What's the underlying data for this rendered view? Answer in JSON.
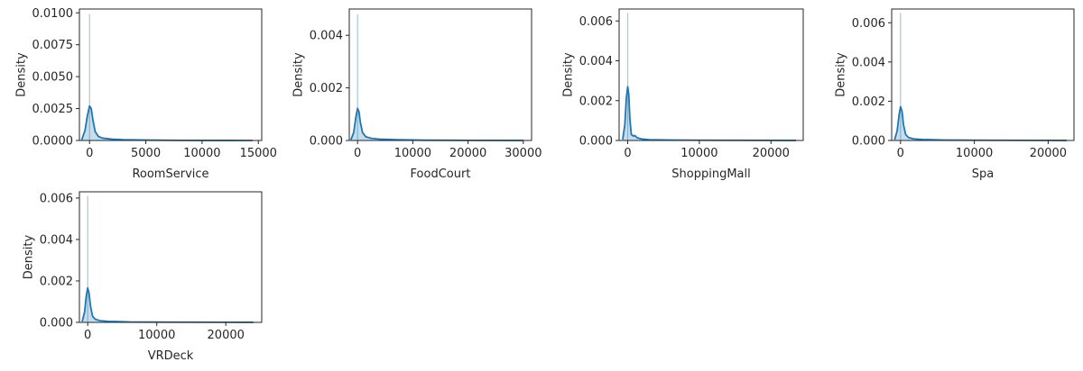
{
  "colors": {
    "kde_line": "#1f77b4",
    "hist_bar": "#a6cad6",
    "axis": "#262626"
  },
  "chart_data": [
    {
      "type": "area",
      "xlabel": "RoomService",
      "ylabel": "Density",
      "xlim": [
        -900,
        15300
      ],
      "ylim": [
        0,
        0.0103
      ],
      "xticks": [
        0,
        5000,
        10000,
        15000
      ],
      "xtick_labels": [
        "0",
        "5000",
        "10000",
        "15000"
      ],
      "yticks": [
        0,
        0.0025,
        0.005,
        0.0075,
        0.01
      ],
      "ytick_labels": [
        "0.0000",
        "0.0025",
        "0.0050",
        "0.0075",
        "0.0100"
      ],
      "hist": {
        "x": 0,
        "height": 0.0099
      },
      "kde": {
        "x": [
          -700,
          -400,
          -200,
          0,
          150,
          300,
          500,
          800,
          1200,
          2000,
          3000,
          5000,
          8000,
          11000,
          14500
        ],
        "y": [
          5e-05,
          0.0008,
          0.0019,
          0.0027,
          0.0025,
          0.0016,
          0.0007,
          0.0003,
          0.00018,
          0.0001,
          6e-05,
          3e-05,
          1e-05,
          5e-06,
          2e-06
        ]
      }
    },
    {
      "type": "area",
      "xlabel": "FoodCourt",
      "ylabel": "Density",
      "xlim": [
        -1500,
        31500
      ],
      "ylim": [
        0,
        0.005
      ],
      "xticks": [
        0,
        10000,
        20000,
        30000
      ],
      "xtick_labels": [
        "0",
        "10000",
        "20000",
        "30000"
      ],
      "yticks": [
        0,
        0.002,
        0.004
      ],
      "ytick_labels": [
        "0.000",
        "0.002",
        "0.004"
      ],
      "hist": {
        "x": 0,
        "height": 0.0048
      },
      "kde": {
        "x": [
          -1200,
          -700,
          -300,
          0,
          250,
          500,
          900,
          1500,
          2500,
          4000,
          7000,
          12000,
          20000,
          30000
        ],
        "y": [
          3e-05,
          0.0003,
          0.0009,
          0.00122,
          0.0011,
          0.0007,
          0.0003,
          0.00014,
          8e-05,
          5e-05,
          3e-05,
          1e-05,
          5e-06,
          2e-06
        ]
      }
    },
    {
      "type": "area",
      "xlabel": "ShoppingMall",
      "ylabel": "Density",
      "xlim": [
        -1200,
        24500
      ],
      "ylim": [
        0,
        0.0066
      ],
      "xticks": [
        0,
        10000,
        20000
      ],
      "xtick_labels": [
        "0",
        "10000",
        "20000"
      ],
      "yticks": [
        0,
        0.002,
        0.004,
        0.006
      ],
      "ytick_labels": [
        "0.000",
        "0.002",
        "0.004",
        "0.006"
      ],
      "hist": {
        "x": 0,
        "height": 0.0064
      },
      "kde": {
        "x": [
          -700,
          -400,
          -200,
          0,
          150,
          300,
          500,
          800,
          1000,
          1300,
          2000,
          3000,
          6000,
          12000,
          23500
        ],
        "y": [
          5e-05,
          0.0008,
          0.0021,
          0.0027,
          0.0023,
          0.0011,
          0.0003,
          0.00022,
          0.00025,
          0.00014,
          7e-05,
          4e-05,
          2e-05,
          1e-05,
          2e-06
        ]
      }
    },
    {
      "type": "area",
      "xlabel": "Spa",
      "ylabel": "Density",
      "xlim": [
        -1200,
        23500
      ],
      "ylim": [
        0,
        0.0067
      ],
      "xticks": [
        0,
        10000,
        20000
      ],
      "xtick_labels": [
        "0",
        "10000",
        "20000"
      ],
      "yticks": [
        0,
        0.002,
        0.004,
        0.006
      ],
      "ytick_labels": [
        "0.000",
        "0.002",
        "0.004",
        "0.006"
      ],
      "hist": {
        "x": 0,
        "height": 0.0065
      },
      "kde": {
        "x": [
          -800,
          -450,
          -200,
          0,
          200,
          400,
          700,
          1100,
          1800,
          3000,
          6000,
          12000,
          22500
        ],
        "y": [
          4e-05,
          0.0005,
          0.0013,
          0.00172,
          0.0015,
          0.0008,
          0.0003,
          0.00015,
          8e-05,
          5e-05,
          2e-05,
          1e-05,
          2e-06
        ]
      }
    },
    {
      "type": "area",
      "xlabel": "VRDeck",
      "ylabel": "Density",
      "xlim": [
        -1200,
        25200
      ],
      "ylim": [
        0,
        0.0063
      ],
      "xticks": [
        0,
        10000,
        20000
      ],
      "xtick_labels": [
        "0",
        "10000",
        "20000"
      ],
      "yticks": [
        0,
        0.002,
        0.004,
        0.006
      ],
      "ytick_labels": [
        "0.000",
        "0.002",
        "0.004",
        "0.006"
      ],
      "hist": {
        "x": 0,
        "height": 0.0061
      },
      "kde": {
        "x": [
          -800,
          -450,
          -200,
          0,
          200,
          400,
          700,
          1100,
          1800,
          3000,
          6000,
          12000,
          24000
        ],
        "y": [
          4e-05,
          0.0005,
          0.0013,
          0.00166,
          0.0014,
          0.0008,
          0.0003,
          0.00015,
          8e-05,
          5e-05,
          2e-05,
          1e-05,
          2e-06
        ]
      }
    }
  ]
}
